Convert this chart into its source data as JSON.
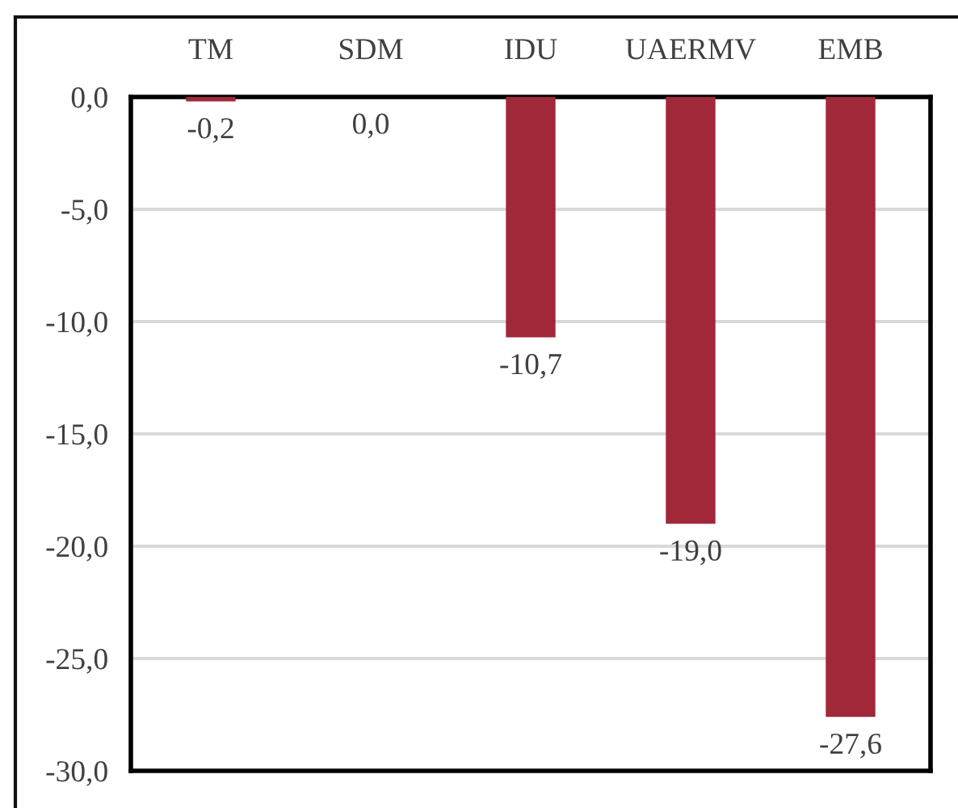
{
  "chart_data": {
    "type": "bar",
    "categories": [
      "TM",
      "SDM",
      "IDU",
      "UAERMV",
      "EMB"
    ],
    "values": [
      -0.2,
      0.0,
      -10.7,
      -19.0,
      -27.6
    ],
    "value_labels": [
      "-0,2",
      "0,0",
      "-10,7",
      "-19,0",
      "-27,6"
    ],
    "color": "#a02838",
    "ylim": [
      -30,
      0
    ],
    "yticks": [
      {
        "value": 0,
        "label": "0,0"
      },
      {
        "value": -5,
        "label": "-5,0"
      },
      {
        "value": -10,
        "label": "-10,0"
      },
      {
        "value": -15,
        "label": "-15,0"
      },
      {
        "value": -20,
        "label": "-20,0"
      },
      {
        "value": -25,
        "label": "-25,0"
      },
      {
        "value": -30,
        "label": "-30,0"
      }
    ],
    "grid": "y"
  }
}
